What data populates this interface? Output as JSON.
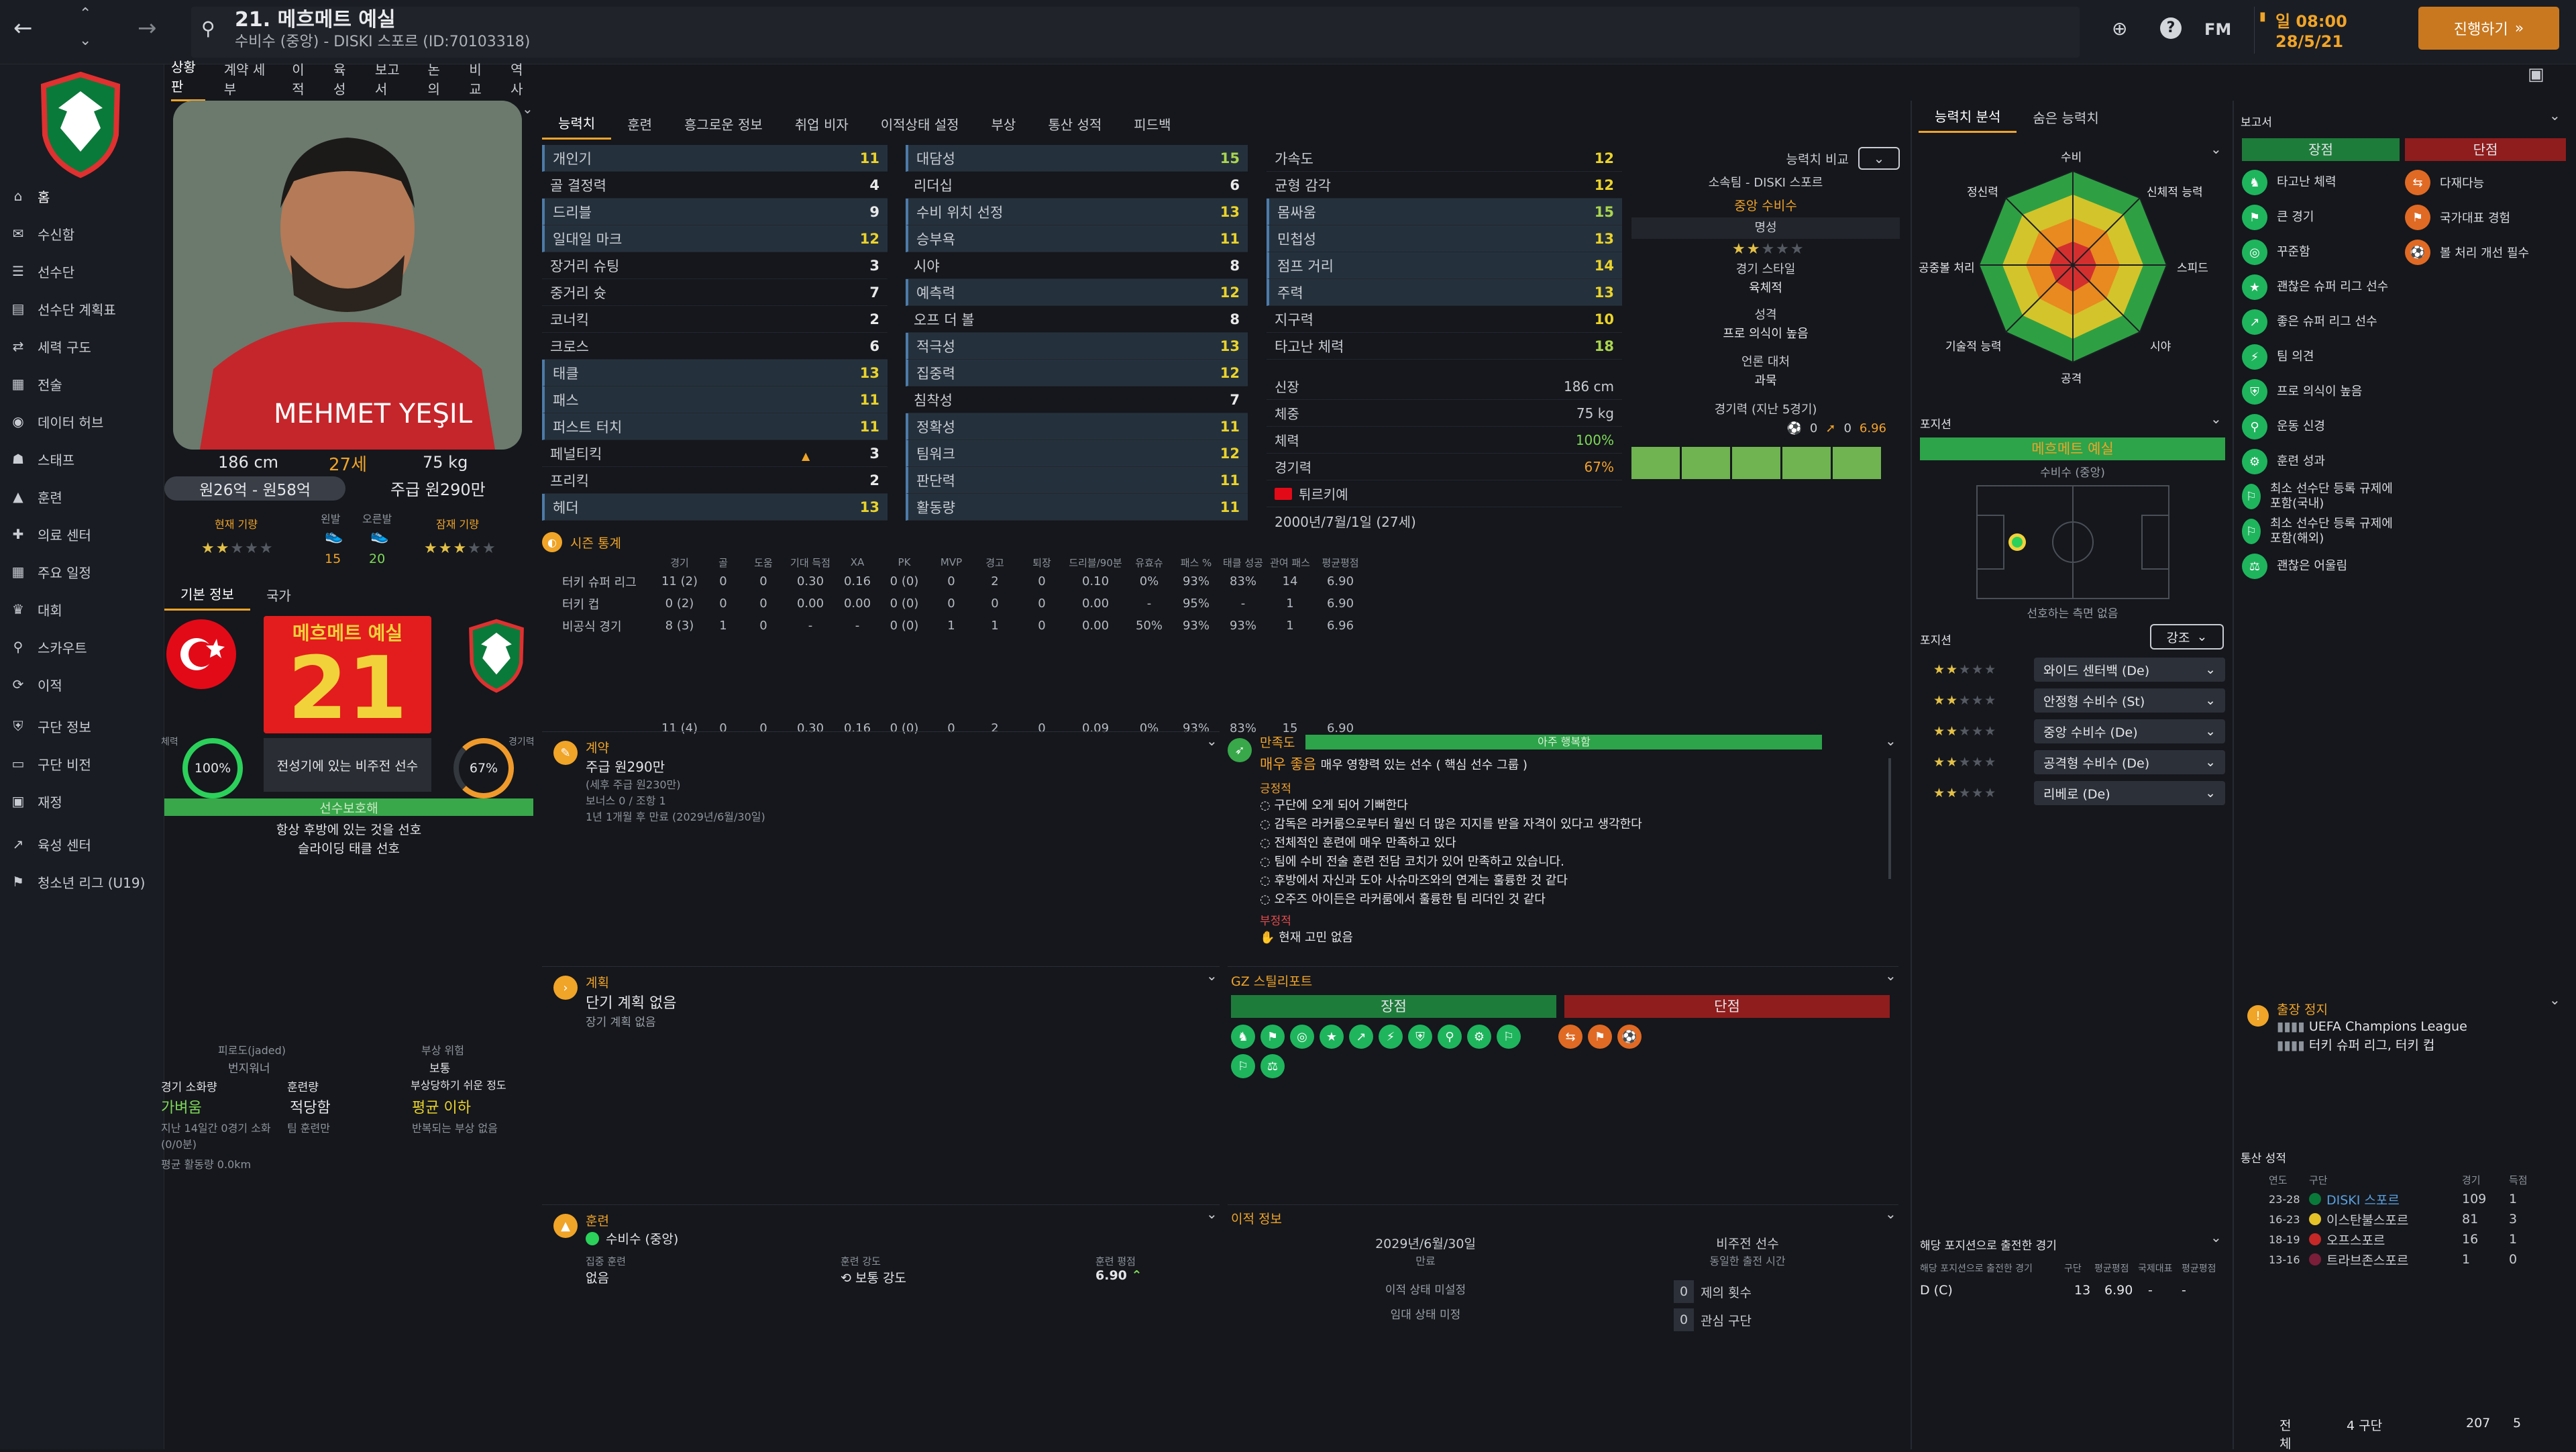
{
  "header": {
    "title": "21. 메흐메트 예실",
    "subtitle": "수비수 (중앙) - DISKI 스포르 (ID:70103318)",
    "date_day": "일 08:00",
    "date": "28/5/21",
    "continue_label": "진행하기",
    "fm_label": "FM"
  },
  "nav": {
    "items": [
      {
        "label": "홈",
        "icon": "home-icon"
      },
      {
        "label": "수신함",
        "icon": "inbox-icon"
      },
      {
        "label": "선수단",
        "icon": "squad-icon"
      },
      {
        "label": "선수단 계획표",
        "icon": "plan-icon"
      },
      {
        "label": "세력 구도",
        "icon": "dynamics-icon"
      },
      {
        "label": "전술",
        "icon": "tactics-icon"
      },
      {
        "label": "데이터 허브",
        "icon": "data-icon"
      },
      {
        "label": "스태프",
        "icon": "staff-icon"
      },
      {
        "label": "훈련",
        "icon": "training-icon"
      },
      {
        "label": "의료 센터",
        "icon": "medical-icon"
      },
      {
        "label": "주요 일정",
        "icon": "calendar-icon"
      },
      {
        "label": "대회",
        "icon": "trophy-icon"
      },
      {
        "label": "스카우트",
        "icon": "scout-icon"
      },
      {
        "label": "이적",
        "icon": "transfer-icon"
      },
      {
        "label": "구단 정보",
        "icon": "club-icon"
      },
      {
        "label": "구단 비전",
        "icon": "vision-icon"
      },
      {
        "label": "재정",
        "icon": "finance-icon"
      },
      {
        "label": "육성 센터",
        "icon": "dev-icon"
      },
      {
        "label": "청소년 리그 (U19)",
        "icon": "youth-icon"
      }
    ]
  },
  "subnav": [
    "상황판",
    "계약 세부",
    "이적",
    "육성",
    "보고서",
    "논의",
    "비교",
    "역사"
  ],
  "player": {
    "height": "186 cm",
    "age": "27세",
    "weight": "75 kg",
    "value": "원26억 - 원58억",
    "wage": "주급 원290만",
    "current_ability": "현재 기량",
    "left_foot": "왼발",
    "right_foot": "오른발",
    "left_val": "15",
    "right_val": "20",
    "potential": "잠재 기량",
    "shirt_name": "메흐메트 예실",
    "number": "21",
    "role_desc": "전성기에 있는 비주전 선수",
    "condition": "100%",
    "match_sharpness": "67%",
    "condition_label": "체력",
    "sharpness_label": "경기력",
    "tab_basic": "기본 정보",
    "tab_nation": "국가",
    "status": "선수보호해",
    "pref1": "항상 후방에 있는 것을 선호",
    "pref2": "슬라이딩 태클 선호",
    "fatigue_title": "피로도(jaded)",
    "fatigue_val": "번지워너",
    "injury_title": "부상 위험",
    "injury_val": "보통",
    "injury_sub": "부상당하기 쉬운 정도",
    "load_title": "경기 소화량",
    "load_val": "가벼움",
    "train_title": "훈련량",
    "train_val": "적당함",
    "avg_title": "평균 이하",
    "load_sub": "지난 14일간 0경기 소화(0/0분)",
    "train_sub": "팀 훈련만",
    "injury_note": "반복되는 부상 없음",
    "avg_run": "평균 활동량 0.0km"
  },
  "attr_tabs": [
    "능력치",
    "훈련",
    "흥그로운 정보",
    "취업 비자",
    "이적상태 설정",
    "부상",
    "통산 성적",
    "피드백"
  ],
  "attributes": {
    "technical": [
      [
        "개인기",
        "11"
      ],
      [
        "골 결정력",
        "4"
      ],
      [
        "드리블",
        "9"
      ],
      [
        "일대일 마크",
        "12"
      ],
      [
        "장거리 슈팅",
        "3"
      ],
      [
        "중거리 슛",
        "7"
      ],
      [
        "코너킥",
        "2"
      ],
      [
        "크로스",
        "6"
      ],
      [
        "태클",
        "13"
      ],
      [
        "패스",
        "11"
      ],
      [
        "퍼스트 터치",
        "11"
      ],
      [
        "페널티킥",
        "3"
      ],
      [
        "프리킥",
        "2"
      ],
      [
        "헤더",
        "13"
      ]
    ],
    "mental": [
      [
        "대담성",
        "15"
      ],
      [
        "리더십",
        "6"
      ],
      [
        "수비 위치 선정",
        "13"
      ],
      [
        "승부욕",
        "11"
      ],
      [
        "시야",
        "8"
      ],
      [
        "예측력",
        "12"
      ],
      [
        "오프 더 볼",
        "8"
      ],
      [
        "적극성",
        "13"
      ],
      [
        "집중력",
        "12"
      ],
      [
        "침착성",
        "7"
      ],
      [
        "정확성",
        "11"
      ],
      [
        "팀워크",
        "12"
      ],
      [
        "판단력",
        "11"
      ],
      [
        "활동량",
        "11"
      ]
    ],
    "physical": [
      [
        "가속도",
        "12"
      ],
      [
        "균형 감각",
        "12"
      ],
      [
        "몸싸움",
        "15"
      ],
      [
        "민첩성",
        "13"
      ],
      [
        "점프 거리",
        "14"
      ],
      [
        "주력",
        "13"
      ],
      [
        "지구력",
        "10"
      ],
      [
        "타고난 체력",
        "18"
      ]
    ]
  },
  "info": {
    "height_label": "신장",
    "height": "186 cm",
    "weight_label": "체중",
    "weight": "75 kg",
    "cond_label": "체력",
    "cond": "100%",
    "sharp_label": "경기력",
    "sharp": "67%",
    "nation": "튀르키예",
    "dob": "2000년/7월/1일 (27세)"
  },
  "compare": {
    "label": "능력치 비교",
    "club": "소속팀 - DISKI 스포르",
    "position": "중앙 수비수",
    "fame_label": "명성",
    "style_label": "경기 스타일",
    "style": "육체적",
    "personality_label": "성격",
    "personality": "프로 의식이 높음",
    "media_label": "언론 대처",
    "media": "과묵",
    "form_label": "경기력 (지난 5경기)",
    "form_goals": "0",
    "form_assists": "0",
    "form_rating": "6.96"
  },
  "season": {
    "title": "시즌 통계",
    "headers": [
      "경기",
      "골",
      "도움",
      "기대 득점",
      "XA",
      "PK",
      "MVP",
      "경고",
      "퇴장",
      "드리블/90분",
      "유효슈",
      "패스 %",
      "태클 성공",
      "관여 패스",
      "평균평점"
    ],
    "rows": [
      {
        "name": "터키 슈퍼 리그",
        "vals": [
          "11 (2)",
          "0",
          "0",
          "0.30",
          "0.16",
          "0 (0)",
          "0",
          "2",
          "0",
          "0.10",
          "0%",
          "93%",
          "83%",
          "14",
          "6.90"
        ]
      },
      {
        "name": "터키 컵",
        "vals": [
          "0 (2)",
          "0",
          "0",
          "0.00",
          "0.00",
          "0 (0)",
          "0",
          "0",
          "0",
          "0.00",
          "-",
          "95%",
          "-",
          "1",
          "6.90"
        ]
      },
      {
        "name": "비공식 경기",
        "vals": [
          "8 (3)",
          "1",
          "0",
          "-",
          "-",
          "0 (0)",
          "1",
          "1",
          "0",
          "0.00",
          "50%",
          "93%",
          "93%",
          "1",
          "6.96"
        ]
      }
    ],
    "total": [
      "11 (4)",
      "0",
      "0",
      "0.30",
      "0.16",
      "0 (0)",
      "0",
      "2",
      "0",
      "0.09",
      "0%",
      "93%",
      "83%",
      "15",
      "6.90"
    ]
  },
  "contract": {
    "title": "계약",
    "wage": "주급 원290만",
    "wage_sub": "(세후 주급 원230만)",
    "bonus": "보너스 0 / 조항 1",
    "expiry": "1년 1개월 후 만료 (2029년/6월/30일)"
  },
  "happiness": {
    "title": "만족도",
    "bar": "아주 행복함",
    "level": "매우 좋음",
    "desc": "매우 영향력 있는 선수 ( 핵심 선수 그룹 )",
    "positive_label": "긍정적",
    "positives": [
      "구단에 오게 되어 기뻐한다",
      "감독은 라커룸으로부터 월씬 더 많은 지지를 받을 자격이 있다고 생각한다",
      "전체적인 훈련에 매우 만족하고 있다",
      "팀에 수비 전술 훈련 전담 코치가 있어 만족하고 있습니다.",
      "후방에서 자신과 도아 사슈마즈와의 연계는 훌륭한 것 같다",
      "오주즈 아이든은 라커룸에서 훌륭한 팀 리더인 것 같다"
    ],
    "negative_label": "부정적",
    "negative": "현재 고민 없음"
  },
  "plans": {
    "title": "계획",
    "short": "단기 계획 없음",
    "long": "장기 계획 없음"
  },
  "scout": {
    "title": "GZ 스틸리포트",
    "strengths": "장점",
    "weaknesses": "단점"
  },
  "training": {
    "title": "훈련",
    "focus": "수비수 (중앙)",
    "extra_label": "집중 훈련",
    "extra": "없음",
    "intensity_label": "훈련 강도",
    "intensity": "보통 강도",
    "rating_label": "훈련 평점",
    "rating": "6.90"
  },
  "transfer": {
    "title": "이적 정보",
    "date": "2029년/6월/30일",
    "date_label": "만료",
    "squad_status": "비주전 선수",
    "squad_sub": "동일한 출전 시간",
    "status1": "이적 상태 미설정",
    "status2": "임대 상태 미정",
    "offers": "0",
    "offers_label": "제의 횟수",
    "interest": "0",
    "interest_label": "관심 구단"
  },
  "analysis": {
    "tab1": "능력치 분석",
    "tab2": "숨은 능력치",
    "labels": [
      "수비",
      "신체적 능력",
      "스피드",
      "시야",
      "공격",
      "기술적 능력",
      "공중볼 처리",
      "정신력"
    ]
  },
  "positions": {
    "title": "포지션",
    "name": "메흐메트 예실",
    "role": "수비수 (중앙)",
    "pref": "선호하는 측면 없음",
    "roles_title": "포지션",
    "emphasis": "강조",
    "roles": [
      {
        "stars": 2,
        "label": "와이드 센터백 (De)"
      },
      {
        "stars": 2,
        "label": "안정형 수비수 (St)"
      },
      {
        "stars": 2,
        "label": "중앙 수비수 (De)"
      },
      {
        "stars": 2,
        "label": "공격형 수비수 (De)"
      },
      {
        "stars": 2,
        "label": "리베로 (De)"
      }
    ],
    "apps_title": "해당 포지션으로 출전한 경기",
    "apps_header": "해당 포지션으로 출전한 경기",
    "apps_cols": [
      "구단",
      "평균평점",
      "국제대표",
      "평균평점"
    ],
    "apps_row": [
      "D (C)",
      "13",
      "6.90",
      "-",
      "-"
    ]
  },
  "report": {
    "title": "보고서",
    "strengths_label": "장점",
    "weaknesses_label": "단점",
    "strengths": [
      "타고난 체력",
      "큰 경기",
      "꾸준함",
      "괜찮은 슈퍼 리그 선수",
      "좋은 슈퍼 리그 선수",
      "팀 의견",
      "프로 의식이 높음",
      "운동 신경",
      "훈련 성과",
      "최소 선수단 등록 규제에 포함(국내)",
      "최소 선수단 등록 규제에 포함(해외)",
      "괜찮은 어울림"
    ],
    "weaknesses": [
      "다재다능",
      "국가대표 경험",
      "볼 처리 개선 필수"
    ]
  },
  "suspensions": {
    "title": "출장 정지",
    "rows": [
      "UEFA Champions League",
      "터키 슈퍼 리그, 터키 컵"
    ]
  },
  "career": {
    "title": "통산 성적",
    "cols": [
      "연도",
      "구단",
      "경기",
      "득점"
    ],
    "rows": [
      [
        "23-28",
        "DISKI 스포르",
        "109",
        "1"
      ],
      [
        "16-23",
        "이스탄불스포르",
        "81",
        "3"
      ],
      [
        "18-19",
        "오프스포르",
        "16",
        "1"
      ],
      [
        "13-16",
        "트라브존스포르",
        "1",
        "0"
      ]
    ],
    "total_label": "전체",
    "total_clubs": "4 구단",
    "total_apps": "207",
    "total_goals": "5"
  }
}
